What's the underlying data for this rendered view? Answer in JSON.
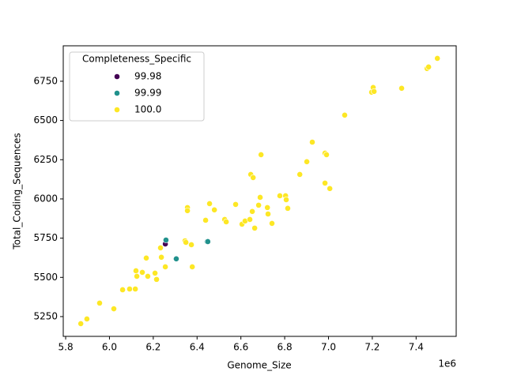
{
  "chart_data": {
    "type": "scatter",
    "xlabel": "Genome_Size",
    "ylabel": "Total_Coding_Sequences",
    "x_offset_label": "1e6",
    "legend_title": "Completeness_Specific",
    "legend_loc": "upper left",
    "xlim": [
      5789000,
      7583000
    ],
    "ylim": [
      5124,
      6976
    ],
    "xticks": [
      {
        "value": 5800000,
        "label": "5.8"
      },
      {
        "value": 6000000,
        "label": "6.0"
      },
      {
        "value": 6200000,
        "label": "6.2"
      },
      {
        "value": 6400000,
        "label": "6.4"
      },
      {
        "value": 6600000,
        "label": "6.6"
      },
      {
        "value": 6800000,
        "label": "6.8"
      },
      {
        "value": 7000000,
        "label": "7.0"
      },
      {
        "value": 7200000,
        "label": "7.2"
      },
      {
        "value": 7400000,
        "label": "7.4"
      }
    ],
    "yticks": [
      5250,
      5500,
      5750,
      6000,
      6250,
      6500,
      6750
    ],
    "series": [
      {
        "name": "99.98",
        "color": "#440154",
        "x": [
          6255000
        ],
        "values": [
          5713
        ]
      },
      {
        "name": "99.99",
        "color": "#21918c",
        "x": [
          6258000,
          6305000,
          6446000,
          6449000
        ],
        "values": [
          5738,
          5618,
          5728,
          5728
        ]
      },
      {
        "name": "100.0",
        "color": "#fde725",
        "x": [
          5869000,
          5897000,
          5955000,
          6020000,
          6060000,
          6092000,
          6118000,
          6121000,
          6125000,
          6150000,
          6168000,
          6175000,
          6208000,
          6215000,
          6233000,
          6237000,
          6255000,
          6345000,
          6349000,
          6356000,
          6356000,
          6374000,
          6378000,
          6439000,
          6457000,
          6479000,
          6526000,
          6533000,
          6576000,
          6605000,
          6619000,
          6641000,
          6645000,
          6652000,
          6656000,
          6663000,
          6681000,
          6688000,
          6692000,
          6721000,
          6724000,
          6742000,
          6778000,
          6804000,
          6807000,
          6814000,
          6869000,
          6901000,
          6926000,
          6984000,
          6984000,
          6991000,
          7006000,
          7074000,
          7197000,
          7204000,
          7208000,
          7334000,
          7450000,
          7457000,
          7497000
        ],
        "values": [
          5205,
          5235,
          5336,
          5300,
          5421,
          5426,
          5426,
          5542,
          5507,
          5532,
          5623,
          5507,
          5527,
          5487,
          5688,
          5628,
          5567,
          5733,
          5723,
          5945,
          5925,
          5708,
          5567,
          5864,
          5970,
          5930,
          5869,
          5854,
          5965,
          5839,
          5859,
          5869,
          6156,
          5920,
          6136,
          5814,
          5960,
          6010,
          6282,
          5945,
          5904,
          5844,
          6020,
          6020,
          5995,
          5940,
          6156,
          6237,
          6362,
          6101,
          6292,
          6282,
          6066,
          6534,
          6680,
          6710,
          6685,
          6705,
          6831,
          6841,
          6896
        ]
      }
    ]
  }
}
